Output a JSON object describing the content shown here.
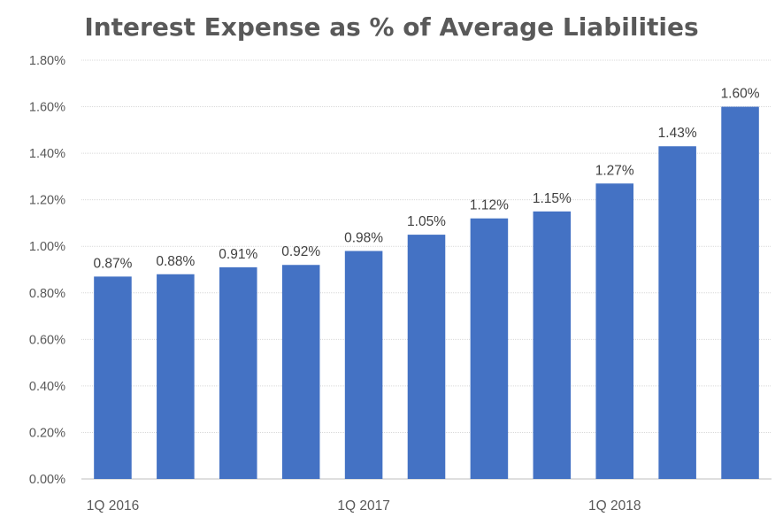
{
  "chart_data": {
    "type": "bar",
    "title": "Interest Expense as % of Average Liabilities",
    "xlabel": "",
    "ylabel": "",
    "categories": [
      "1Q 2016",
      "",
      "",
      "",
      "1Q 2017",
      "",
      "",
      "",
      "1Q 2018",
      "",
      ""
    ],
    "values": [
      0.87,
      0.88,
      0.91,
      0.92,
      0.98,
      1.05,
      1.12,
      1.15,
      1.27,
      1.43,
      1.6
    ],
    "data_labels": [
      "0.87%",
      "0.88%",
      "0.91%",
      "0.92%",
      "0.98%",
      "1.05%",
      "1.12%",
      "1.15%",
      "1.27%",
      "1.43%",
      "1.60%"
    ],
    "ylim": [
      0,
      1.8
    ],
    "yticks": [
      0,
      0.2,
      0.4,
      0.6,
      0.8,
      1.0,
      1.2,
      1.4,
      1.6,
      1.8
    ],
    "ytick_labels": [
      "0.00%",
      "0.20%",
      "0.40%",
      "0.60%",
      "0.80%",
      "1.00%",
      "1.20%",
      "1.40%",
      "1.60%",
      "1.80%"
    ],
    "grid": true,
    "legend": "none",
    "colors": {
      "bar": "#4472C4",
      "grid": "#D9D9D9",
      "axis": "#BFBFBF"
    }
  }
}
